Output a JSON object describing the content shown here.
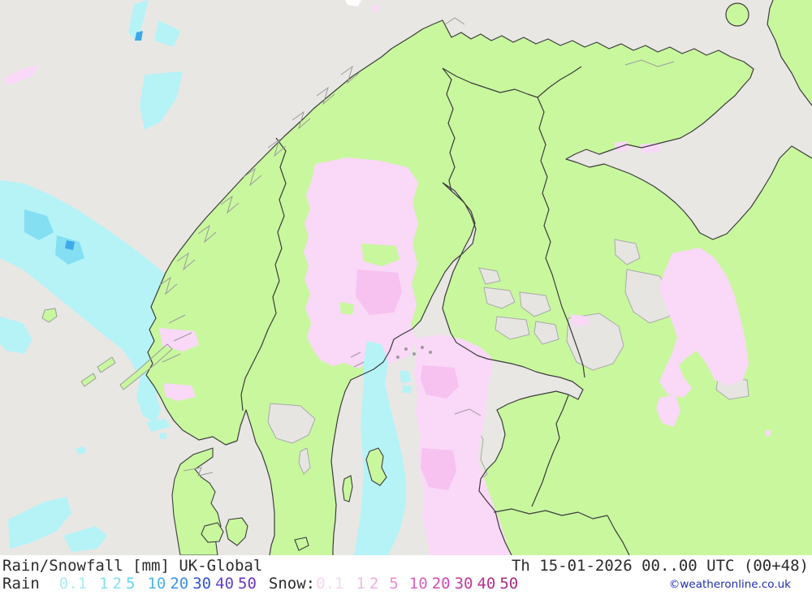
{
  "legend": {
    "title": "Rain/Snowfall [mm] UK-Global",
    "timestamp": "Th 15-01-2026 00..00 UTC (00+48)",
    "rain_label": "Rain",
    "rain_values": [
      {
        "text": "0.1",
        "color": "#aaedf1"
      },
      {
        "text": "1",
        "color": "#7fe1f0"
      },
      {
        "text": "2",
        "color": "#7fe1f0"
      },
      {
        "text": "5",
        "color": "#63d5ee"
      },
      {
        "text": "10",
        "color": "#4cb4ec"
      },
      {
        "text": "20",
        "color": "#3b90e6"
      },
      {
        "text": "30",
        "color": "#2f55cc"
      },
      {
        "text": "40",
        "color": "#6142cc"
      },
      {
        "text": "50",
        "color": "#6a34b9"
      }
    ],
    "snow_label": "Snow:",
    "snow_values": [
      {
        "text": "0.1",
        "color": "#f5d7f1"
      },
      {
        "text": "1",
        "color": "#f0bce8"
      },
      {
        "text": "2",
        "color": "#edaee2"
      },
      {
        "text": "5",
        "color": "#e78cd4"
      },
      {
        "text": "10",
        "color": "#dc62c0"
      },
      {
        "text": "20",
        "color": "#d14ab2"
      },
      {
        "text": "30",
        "color": "#c33a9c"
      },
      {
        "text": "40",
        "color": "#b43090"
      },
      {
        "text": "50",
        "color": "#a82a85"
      }
    ],
    "copyright": "©weatheronline.co.uk"
  },
  "palette": {
    "sea": "#e9e7e4",
    "land": "#c9f79e",
    "coast": "#3c3c3c",
    "detail": "#9b9b9b",
    "lake": "#e7e5e2",
    "lakestroke": "#a9a9a9",
    "rain1": "#b5f3f7",
    "rain2": "#84dff3",
    "rain3": "#3fa8e8",
    "snow1": "#fad8f8",
    "snow2": "#f7c1f0",
    "whitepatch": "#ffffff"
  }
}
